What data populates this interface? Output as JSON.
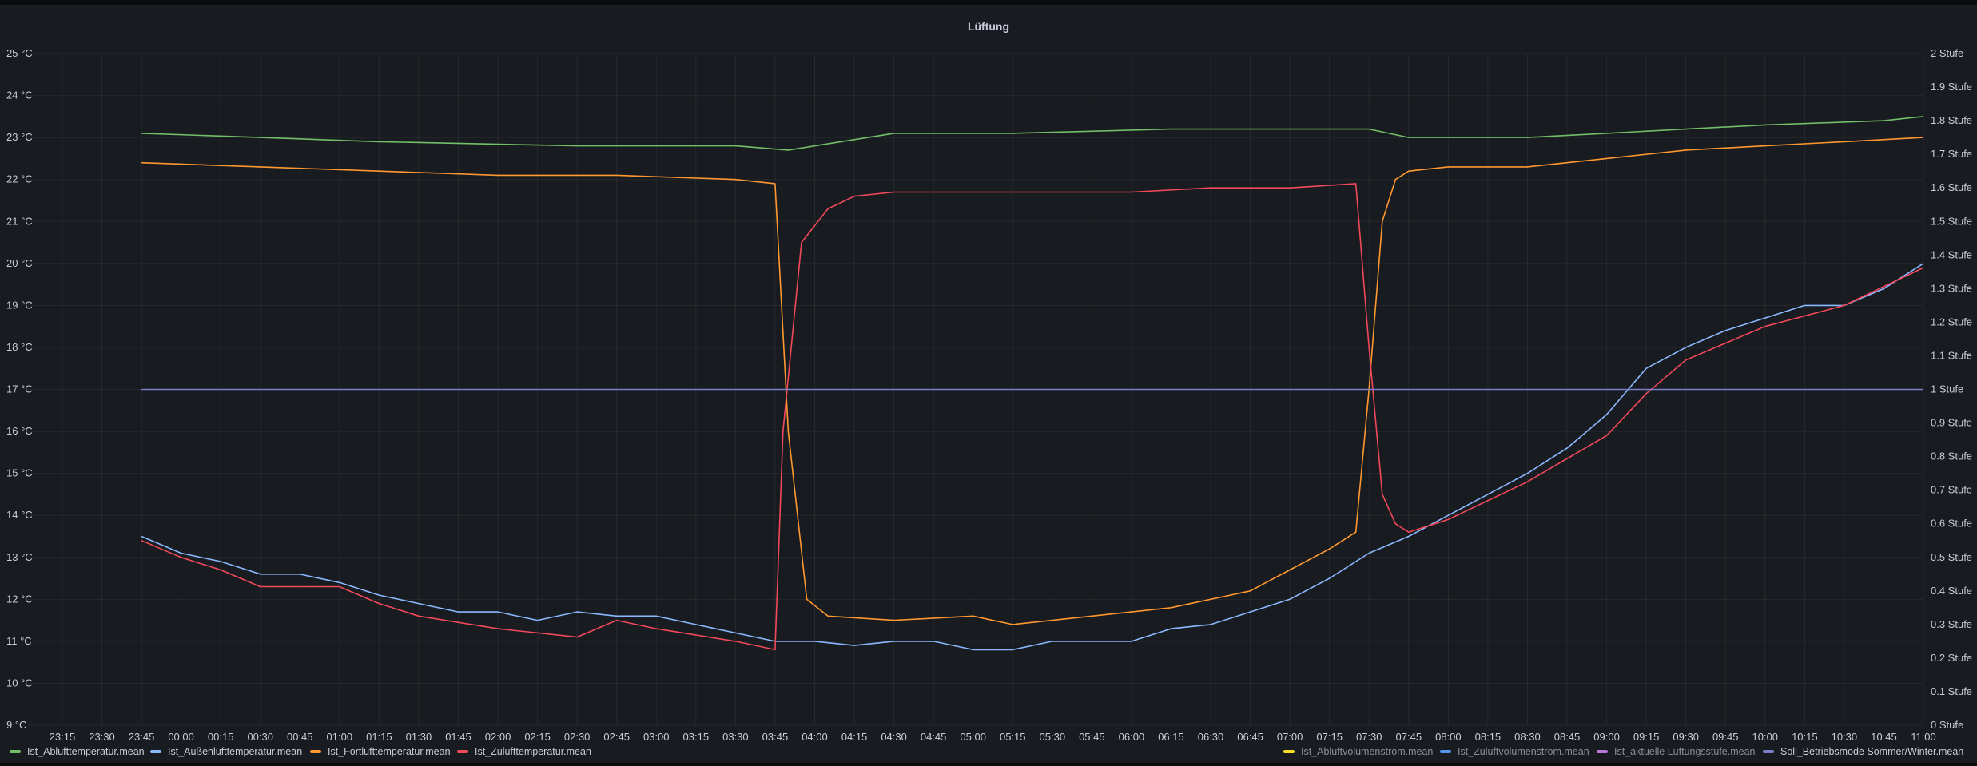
{
  "panel": {
    "title": "Lüftung"
  },
  "chart_data": {
    "type": "line",
    "title": "Lüftung",
    "x_ticks": [
      "23:15",
      "23:30",
      "23:45",
      "00:00",
      "00:15",
      "00:30",
      "00:45",
      "01:00",
      "01:15",
      "01:30",
      "01:45",
      "02:00",
      "02:15",
      "02:30",
      "02:45",
      "03:00",
      "03:15",
      "03:30",
      "03:45",
      "04:00",
      "04:15",
      "04:30",
      "04:45",
      "05:00",
      "05:15",
      "05:30",
      "05:45",
      "06:00",
      "06:15",
      "06:30",
      "06:45",
      "07:00",
      "07:15",
      "07:30",
      "07:45",
      "08:00",
      "08:15",
      "08:30",
      "08:45",
      "09:00",
      "09:15",
      "09:30",
      "09:45",
      "10:00",
      "10:15",
      "10:30",
      "10:45",
      "11:00"
    ],
    "xlim": [
      "23:02",
      "11:00"
    ],
    "y_left": {
      "unit": "°C",
      "ylim": [
        9,
        25
      ],
      "ticks": [
        "9 °C",
        "10 °C",
        "11 °C",
        "12 °C",
        "13 °C",
        "14 °C",
        "15 °C",
        "16 °C",
        "17 °C",
        "18 °C",
        "19 °C",
        "20 °C",
        "21 °C",
        "22 °C",
        "23 °C",
        "24 °C",
        "25 °C"
      ]
    },
    "y_right": {
      "unit": "Stufe",
      "ylim": [
        0,
        2
      ],
      "ticks": [
        "0 Stufe",
        "0.1 Stufe",
        "0.2 Stufe",
        "0.3 Stufe",
        "0.4 Stufe",
        "0.5 Stufe",
        "0.6 Stufe",
        "0.7 Stufe",
        "0.8 Stufe",
        "0.9 Stufe",
        "1 Stufe",
        "1.1 Stufe",
        "1.2 Stufe",
        "1.3 Stufe",
        "1.4 Stufe",
        "1.5 Stufe",
        "1.6 Stufe",
        "1.7 Stufe",
        "1.8 Stufe",
        "1.9 Stufe",
        "2 Stufe"
      ]
    },
    "grid": true,
    "legend_position": "bottom",
    "series": [
      {
        "name": "Ist_Ablufttemperatur.mean",
        "color": "#73bf69",
        "axis": "left",
        "visible": true,
        "x": [
          "23:45",
          "00:30",
          "01:15",
          "02:30",
          "03:30",
          "03:50",
          "04:30",
          "05:15",
          "06:15",
          "07:30",
          "07:45",
          "08:30",
          "09:00",
          "09:30",
          "10:00",
          "10:45",
          "11:00"
        ],
        "y": [
          23.1,
          23.0,
          22.9,
          22.8,
          22.8,
          22.7,
          23.1,
          23.1,
          23.2,
          23.2,
          23.0,
          23.0,
          23.1,
          23.2,
          23.3,
          23.4,
          23.5
        ]
      },
      {
        "name": "Ist_Außenlufttemperatur.mean",
        "color": "#8ab8ff",
        "axis": "left",
        "visible": true,
        "x": [
          "23:45",
          "00:00",
          "00:15",
          "00:30",
          "00:45",
          "01:00",
          "01:15",
          "01:30",
          "01:45",
          "02:00",
          "02:15",
          "02:30",
          "02:45",
          "03:00",
          "03:15",
          "03:30",
          "03:45",
          "04:00",
          "04:15",
          "04:30",
          "04:45",
          "05:00",
          "05:15",
          "05:30",
          "05:45",
          "06:00",
          "06:15",
          "06:30",
          "06:45",
          "07:00",
          "07:15",
          "07:30",
          "07:45",
          "08:00",
          "08:15",
          "08:30",
          "08:45",
          "09:00",
          "09:15",
          "09:30",
          "09:45",
          "10:00",
          "10:15",
          "10:30",
          "10:45",
          "11:00"
        ],
        "y": [
          13.5,
          13.1,
          12.9,
          12.6,
          12.6,
          12.4,
          12.1,
          11.9,
          11.7,
          11.7,
          11.5,
          11.7,
          11.6,
          11.6,
          11.4,
          11.2,
          11.0,
          11.0,
          10.9,
          11.0,
          11.0,
          10.8,
          10.8,
          11.0,
          11.0,
          11.0,
          11.3,
          11.4,
          11.7,
          12.0,
          12.5,
          13.1,
          13.5,
          14.0,
          14.5,
          15.0,
          15.6,
          16.4,
          17.5,
          18.0,
          18.4,
          18.7,
          19.0,
          19.0,
          19.4,
          20.0
        ]
      },
      {
        "name": "Ist_Fortlufttemperatur.mean",
        "color": "#ff9830",
        "axis": "left",
        "visible": true,
        "x": [
          "23:45",
          "00:30",
          "01:15",
          "02:00",
          "02:45",
          "03:30",
          "03:45",
          "03:50",
          "03:57",
          "04:05",
          "04:30",
          "05:00",
          "05:15",
          "05:45",
          "06:15",
          "06:45",
          "07:00",
          "07:15",
          "07:25",
          "07:30",
          "07:35",
          "07:40",
          "07:45",
          "08:00",
          "08:30",
          "09:00",
          "09:30",
          "10:00",
          "10:30",
          "11:00"
        ],
        "y": [
          22.4,
          22.3,
          22.2,
          22.1,
          22.1,
          22.0,
          21.9,
          16.0,
          12.0,
          11.6,
          11.5,
          11.6,
          11.4,
          11.6,
          11.8,
          12.2,
          12.7,
          13.2,
          13.6,
          17.0,
          21.0,
          22.0,
          22.2,
          22.3,
          22.3,
          22.5,
          22.7,
          22.8,
          22.9,
          23.0
        ]
      },
      {
        "name": "Ist_Zulufttemperatur.mean",
        "color": "#f2495c",
        "axis": "left",
        "visible": true,
        "x": [
          "23:45",
          "00:00",
          "00:15",
          "00:30",
          "01:00",
          "01:15",
          "01:30",
          "02:00",
          "02:30",
          "02:45",
          "03:00",
          "03:30",
          "03:45",
          "03:48",
          "03:55",
          "04:05",
          "04:15",
          "04:30",
          "05:00",
          "06:00",
          "06:30",
          "07:00",
          "07:25",
          "07:30",
          "07:35",
          "07:40",
          "07:45",
          "08:00",
          "08:30",
          "09:00",
          "09:15",
          "09:30",
          "10:00",
          "10:30",
          "11:00"
        ],
        "y": [
          13.4,
          13.0,
          12.7,
          12.3,
          12.3,
          11.9,
          11.6,
          11.3,
          11.1,
          11.5,
          11.3,
          11.0,
          10.8,
          16.0,
          20.5,
          21.3,
          21.6,
          21.7,
          21.7,
          21.7,
          21.8,
          21.8,
          21.9,
          18.0,
          14.5,
          13.8,
          13.6,
          13.9,
          14.8,
          15.9,
          16.9,
          17.7,
          18.5,
          19.0,
          19.9
        ]
      },
      {
        "name": "Ist_Abluftvolumenstrom.mean",
        "color": "#fade2a",
        "axis": "right",
        "visible": false
      },
      {
        "name": "Ist_Zuluftvolumenstrom.mean",
        "color": "#5794f2",
        "axis": "right",
        "visible": false
      },
      {
        "name": "Ist_aktuelle Lüftungsstufe.mean",
        "color": "#b877d9",
        "axis": "right",
        "visible": false
      },
      {
        "name": "Soll_Betriebsmode Sommer/Winter.mean",
        "color": "#7b7fc9",
        "axis": "right",
        "visible": true,
        "x": [
          "23:45",
          "11:00"
        ],
        "y": [
          1,
          1
        ]
      }
    ]
  }
}
